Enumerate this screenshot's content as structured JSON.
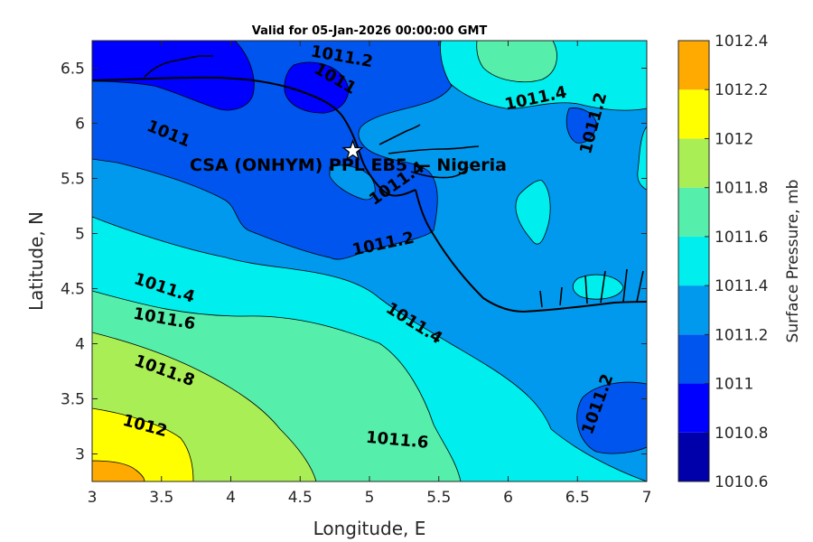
{
  "title": "Valid for 05-Jan-2026 00:00:00 GMT",
  "site_label": "CSA (ONHYM) PPL EB5 — Nigeria",
  "axes": {
    "xlabel": "Longitude, E",
    "ylabel": "Latitude, N",
    "xticks": [
      "3",
      "3.5",
      "4",
      "4.5",
      "5",
      "5.5",
      "6",
      "6.5",
      "7"
    ],
    "yticks": [
      "3",
      "3.5",
      "4",
      "4.5",
      "5",
      "5.5",
      "6",
      "6.5"
    ]
  },
  "colorbar": {
    "label": "Surface Pressure, mb",
    "ticks": [
      "1010.6",
      "1010.8",
      "1011",
      "1011.2",
      "1011.4",
      "1011.6",
      "1011.8",
      "1012",
      "1012.2",
      "1012.4"
    ],
    "colors": [
      "#0000aa",
      "#0000ff",
      "#0055ee",
      "#0099ee",
      "#00eeee",
      "#55eeaa",
      "#aaee55",
      "#ffff00",
      "#ffaa00",
      "#ff5500"
    ]
  },
  "contour_labels": [
    {
      "text": "1011.2",
      "lon": 4.8,
      "lat": 6.6
    },
    {
      "text": "1011",
      "lon": 4.75,
      "lat": 6.4
    },
    {
      "text": "1011",
      "lon": 3.55,
      "lat": 5.9
    },
    {
      "text": "1011.4",
      "lon": 6.2,
      "lat": 6.22
    },
    {
      "text": "1011.2",
      "lon": 6.62,
      "lat": 6.0
    },
    {
      "text": "1011.4",
      "lon": 5.2,
      "lat": 5.45
    },
    {
      "text": "1011.2",
      "lon": 5.1,
      "lat": 4.9
    },
    {
      "text": "1011.4",
      "lon": 3.52,
      "lat": 4.5
    },
    {
      "text": "1011.6",
      "lon": 3.52,
      "lat": 4.22
    },
    {
      "text": "1011.4",
      "lon": 5.32,
      "lat": 4.18
    },
    {
      "text": "1011.8",
      "lon": 3.52,
      "lat": 3.75
    },
    {
      "text": "1011.2",
      "lon": 6.65,
      "lat": 3.45
    },
    {
      "text": "1012",
      "lon": 3.38,
      "lat": 3.25
    },
    {
      "text": "1011.6",
      "lon": 5.2,
      "lat": 3.12
    }
  ],
  "site_marker": {
    "lon": 4.88,
    "lat": 5.75
  }
}
